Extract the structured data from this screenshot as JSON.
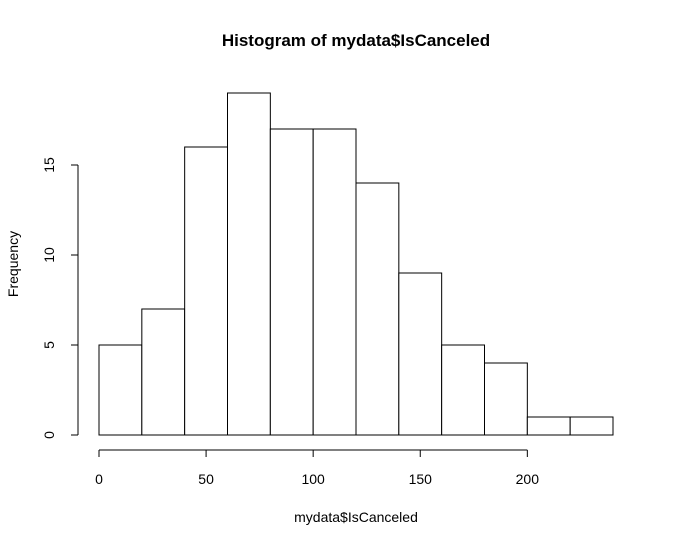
{
  "chart_data": {
    "type": "bar",
    "title": "Histogram of mydata$IsCanceled",
    "xlabel": "mydata$IsCanceled",
    "ylabel": "Frequency",
    "bins": [
      {
        "start": 0,
        "end": 20,
        "count": 5
      },
      {
        "start": 20,
        "end": 40,
        "count": 7
      },
      {
        "start": 40,
        "end": 60,
        "count": 16
      },
      {
        "start": 60,
        "end": 80,
        "count": 19
      },
      {
        "start": 80,
        "end": 100,
        "count": 17
      },
      {
        "start": 100,
        "end": 120,
        "count": 17
      },
      {
        "start": 120,
        "end": 140,
        "count": 14
      },
      {
        "start": 140,
        "end": 160,
        "count": 9
      },
      {
        "start": 160,
        "end": 180,
        "count": 5
      },
      {
        "start": 180,
        "end": 200,
        "count": 4
      },
      {
        "start": 200,
        "end": 220,
        "count": 1
      },
      {
        "start": 220,
        "end": 240,
        "count": 1
      }
    ],
    "x_ticks": [
      0,
      50,
      100,
      150,
      200
    ],
    "y_ticks": [
      0,
      5,
      10,
      15
    ],
    "xlim": [
      0,
      240
    ],
    "ylim": [
      0,
      19
    ],
    "grid": false,
    "colors": {
      "bar_fill": "#ffffff",
      "bar_stroke": "#000000"
    }
  }
}
